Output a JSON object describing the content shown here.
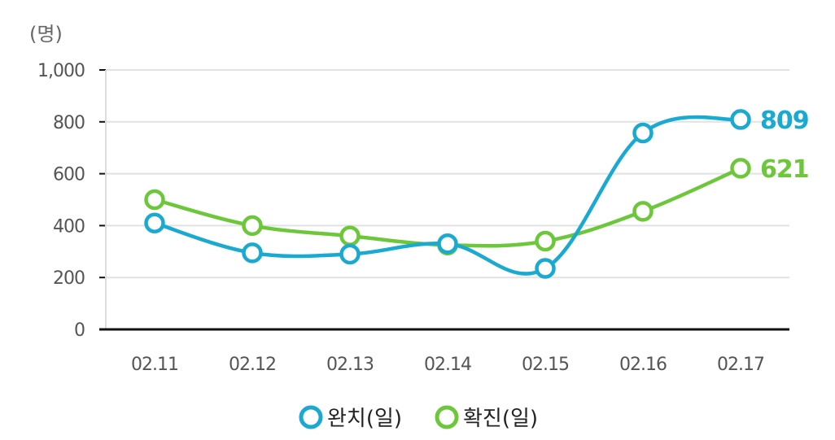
{
  "chart_data": {
    "type": "line",
    "unit_label": "(명)",
    "categories": [
      "02.11",
      "02.12",
      "02.13",
      "02.14",
      "02.15",
      "02.16",
      "02.17"
    ],
    "y_ticks": [
      "0",
      "200",
      "400",
      "600",
      "800",
      "1,000"
    ],
    "ylim": [
      0,
      1000
    ],
    "grid": true,
    "legend_position": "bottom-center",
    "series": [
      {
        "name": "완치(일)",
        "color": "#1aa9d0",
        "values": [
          410,
          295,
          290,
          330,
          235,
          757,
          809
        ],
        "end_label": "809"
      },
      {
        "name": "확진(일)",
        "color": "#6cc83a",
        "values": [
          500,
          400,
          360,
          325,
          340,
          455,
          621
        ],
        "end_label": "621"
      }
    ]
  }
}
